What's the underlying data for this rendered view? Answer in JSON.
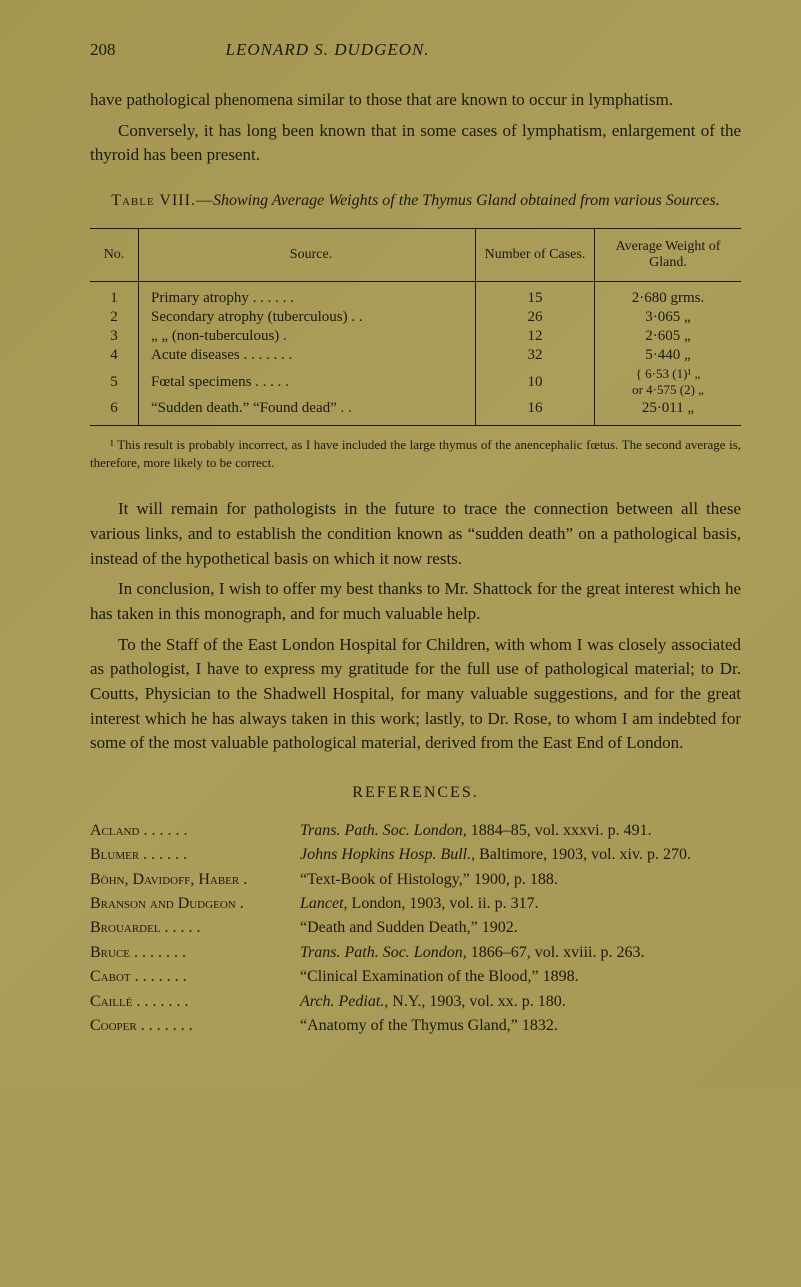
{
  "header": {
    "page_number": "208",
    "running_title": "LEONARD S. DUDGEON."
  },
  "paragraphs": {
    "p1": "have pathological phenomena similar to those that are known to occur in lymphatism.",
    "p2": "Conversely, it has long been known that in some cases of lymphatism, enlargement of the thyroid has been present.",
    "p3": "It will remain for pathologists in the future to trace the connection between all these various links, and to establish the condition known as “sudden death” on a pathological basis, instead of the hypothetical basis on which it now rests.",
    "p4": "In conclusion, I wish to offer my best thanks to Mr. Shattock for the great interest which he has taken in this monograph, and for much valuable help.",
    "p5": "To the Staff of the East London Hospital for Children, with whom I was closely associated as pathologist, I have to express my gratitude for the full use of pathological material; to Dr. Coutts, Physician to the Shadwell Hospital, for many valuable suggestions, and for the great interest which he has always taken in this work; lastly, to Dr. Rose, to whom I am indebted for some of the most valuable pathological material, derived from the East End of London."
  },
  "table": {
    "caption_prefix": "Table VIII.—",
    "caption_title": "Showing Average Weights of the Thymus Gland obtained from various Sources.",
    "columns": {
      "no": "No.",
      "source": "Source.",
      "cases": "Number of Cases.",
      "weight": "Average Weight of Gland."
    },
    "rows": [
      {
        "no": "1",
        "source": "Primary atrophy  .   .   .   .   .   .",
        "cases": "15",
        "weight": "2·680 grms."
      },
      {
        "no": "2",
        "source": "Secondary atrophy (tuberculous)    .   .",
        "cases": "26",
        "weight": "3·065   „"
      },
      {
        "no": "3",
        "source": "       „          „     (non-tuberculous)    .",
        "cases": "12",
        "weight": "2·605   „"
      },
      {
        "no": "4",
        "source": "Acute diseases .   .   .   .   .   .   .",
        "cases": "32",
        "weight": "5·440   „"
      },
      {
        "no": "5",
        "source": "Fœtal specimens   .   .   .   .   .",
        "cases": "10",
        "weight": "{  6·53 (1)¹ „\nor 4·575 (2) „"
      },
      {
        "no": "6",
        "source": "“Sudden death.”  “Found dead”   .   .",
        "cases": "16",
        "weight": "25·011   „"
      }
    ]
  },
  "footnote": "¹ This result is probably incorrect, as I have included the large thymus of the anencephalic fœtus. The second average is, therefore, more likely to be correct.",
  "references": {
    "title": "REFERENCES.",
    "items": [
      {
        "author": "Acland  .   .   .   .   .   .",
        "cite": "Trans. Path. Soc. London,",
        "rest": " 1884–85, vol. xxxvi. p. 491."
      },
      {
        "author": "Blumer  .   .   .   .   .   .",
        "cite": "Johns Hopkins Hosp. Bull.,",
        "rest": " Baltimore, 1903, vol. xiv. p. 270."
      },
      {
        "author": "Böhn, Davidoff, Haber .",
        "cite": "“Text-Book of Histology,”",
        "rest": " 1900, p. 188."
      },
      {
        "author": "Branson and Dudgeon  .",
        "cite": "Lancet,",
        "rest": " London, 1903, vol. ii. p. 317."
      },
      {
        "author": "Brouardel   .   .   .   .   .",
        "cite": "“Death and Sudden Death,”",
        "rest": " 1902."
      },
      {
        "author": "Bruce .   .   .   .   .   .   .",
        "cite": "Trans. Path. Soc. London,",
        "rest": " 1866–67, vol. xviii. p. 263."
      },
      {
        "author": "Cabot .   .   .   .   .   .   .",
        "cite": "“Clinical Examination of the Blood,”",
        "rest": " 1898."
      },
      {
        "author": "Caillé .   .   .   .   .   .   .",
        "cite": "Arch. Pediat.,",
        "rest": " N.Y., 1903, vol. xx. p. 180."
      },
      {
        "author": "Cooper .   .   .   .   .   .   .",
        "cite": "“Anatomy of the Thymus Gland,”",
        "rest": " 1832."
      }
    ]
  },
  "styling": {
    "background_color": "#a89a58",
    "text_color": "#1a1a0f",
    "rule_color": "#1a1a0f",
    "body_fontsize": 17,
    "footnote_fontsize": 13,
    "table_fontsize": 14
  }
}
